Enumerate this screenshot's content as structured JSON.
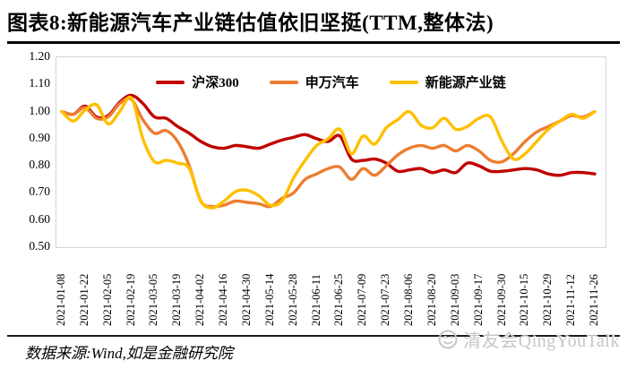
{
  "header": {
    "title": "图表8:新能源汽车产业链估值依旧坚挺(TTM,整体法)"
  },
  "footer": {
    "source": "数据来源:Wind,如是金融研究院",
    "watermark": "清友会QingYouTalk"
  },
  "chart_data": {
    "type": "line",
    "title": "新能源汽车产业链估值依旧坚挺(TTM,整体法)",
    "xlabel": "",
    "ylabel": "",
    "ylim": [
      0.5,
      1.2
    ],
    "yticks": [
      "0.50",
      "0.60",
      "0.70",
      "0.80",
      "0.90",
      "1.00",
      "1.10",
      "1.20"
    ],
    "grid": false,
    "legend_position": "top-center",
    "x_label_rotation": 90,
    "label_every": 2,
    "n_points": 47,
    "x_labels": [
      "2021-01-08",
      "2021-01-22",
      "2021-02-05",
      "2021-02-19",
      "2021-03-05",
      "2021-03-19",
      "2021-04-02",
      "2021-04-16",
      "2021-04-30",
      "2021-05-14",
      "2021-05-28",
      "2021-06-11",
      "2021-06-25",
      "2021-07-09",
      "2021-07-23",
      "2021-08-06",
      "2021-08-20",
      "2021-09-03",
      "2021-09-17",
      "2021-09-30",
      "2021-10-15",
      "2021-10-29",
      "2021-11-12",
      "2021-11-26"
    ],
    "series": [
      {
        "name": "沪深300",
        "color": "#c00000",
        "values": [
          1.0,
          0.99,
          1.02,
          0.98,
          0.985,
          1.035,
          1.06,
          1.03,
          0.98,
          0.975,
          0.945,
          0.92,
          0.89,
          0.87,
          0.865,
          0.875,
          0.87,
          0.865,
          0.88,
          0.895,
          0.905,
          0.915,
          0.9,
          0.89,
          0.91,
          0.825,
          0.82,
          0.825,
          0.81,
          0.78,
          0.785,
          0.79,
          0.775,
          0.785,
          0.775,
          0.81,
          0.8,
          0.78,
          0.78,
          0.785,
          0.79,
          0.785,
          0.77,
          0.765,
          0.775,
          0.775,
          0.77
        ]
      },
      {
        "name": "申万汽车",
        "color": "#ed7d31",
        "values": [
          1.0,
          0.99,
          1.015,
          0.975,
          0.98,
          1.03,
          1.045,
          0.97,
          0.92,
          0.93,
          0.89,
          0.8,
          0.67,
          0.65,
          0.655,
          0.67,
          0.665,
          0.66,
          0.65,
          0.68,
          0.7,
          0.75,
          0.77,
          0.79,
          0.795,
          0.75,
          0.79,
          0.765,
          0.8,
          0.84,
          0.865,
          0.875,
          0.865,
          0.875,
          0.855,
          0.875,
          0.855,
          0.82,
          0.815,
          0.845,
          0.89,
          0.925,
          0.945,
          0.965,
          0.985,
          0.98,
          1.0
        ]
      },
      {
        "name": "新能源产业链",
        "color": "#ffc000",
        "values": [
          1.0,
          0.965,
          1.005,
          1.025,
          0.955,
          1.0,
          1.05,
          0.9,
          0.815,
          0.82,
          0.81,
          0.79,
          0.67,
          0.645,
          0.67,
          0.705,
          0.71,
          0.69,
          0.655,
          0.67,
          0.755,
          0.82,
          0.875,
          0.9,
          0.935,
          0.845,
          0.91,
          0.88,
          0.94,
          0.97,
          1.0,
          0.95,
          0.94,
          0.975,
          0.935,
          0.945,
          0.975,
          0.98,
          0.89,
          0.825,
          0.845,
          0.89,
          0.935,
          0.965,
          0.99,
          0.975,
          1.0
        ]
      }
    ]
  }
}
